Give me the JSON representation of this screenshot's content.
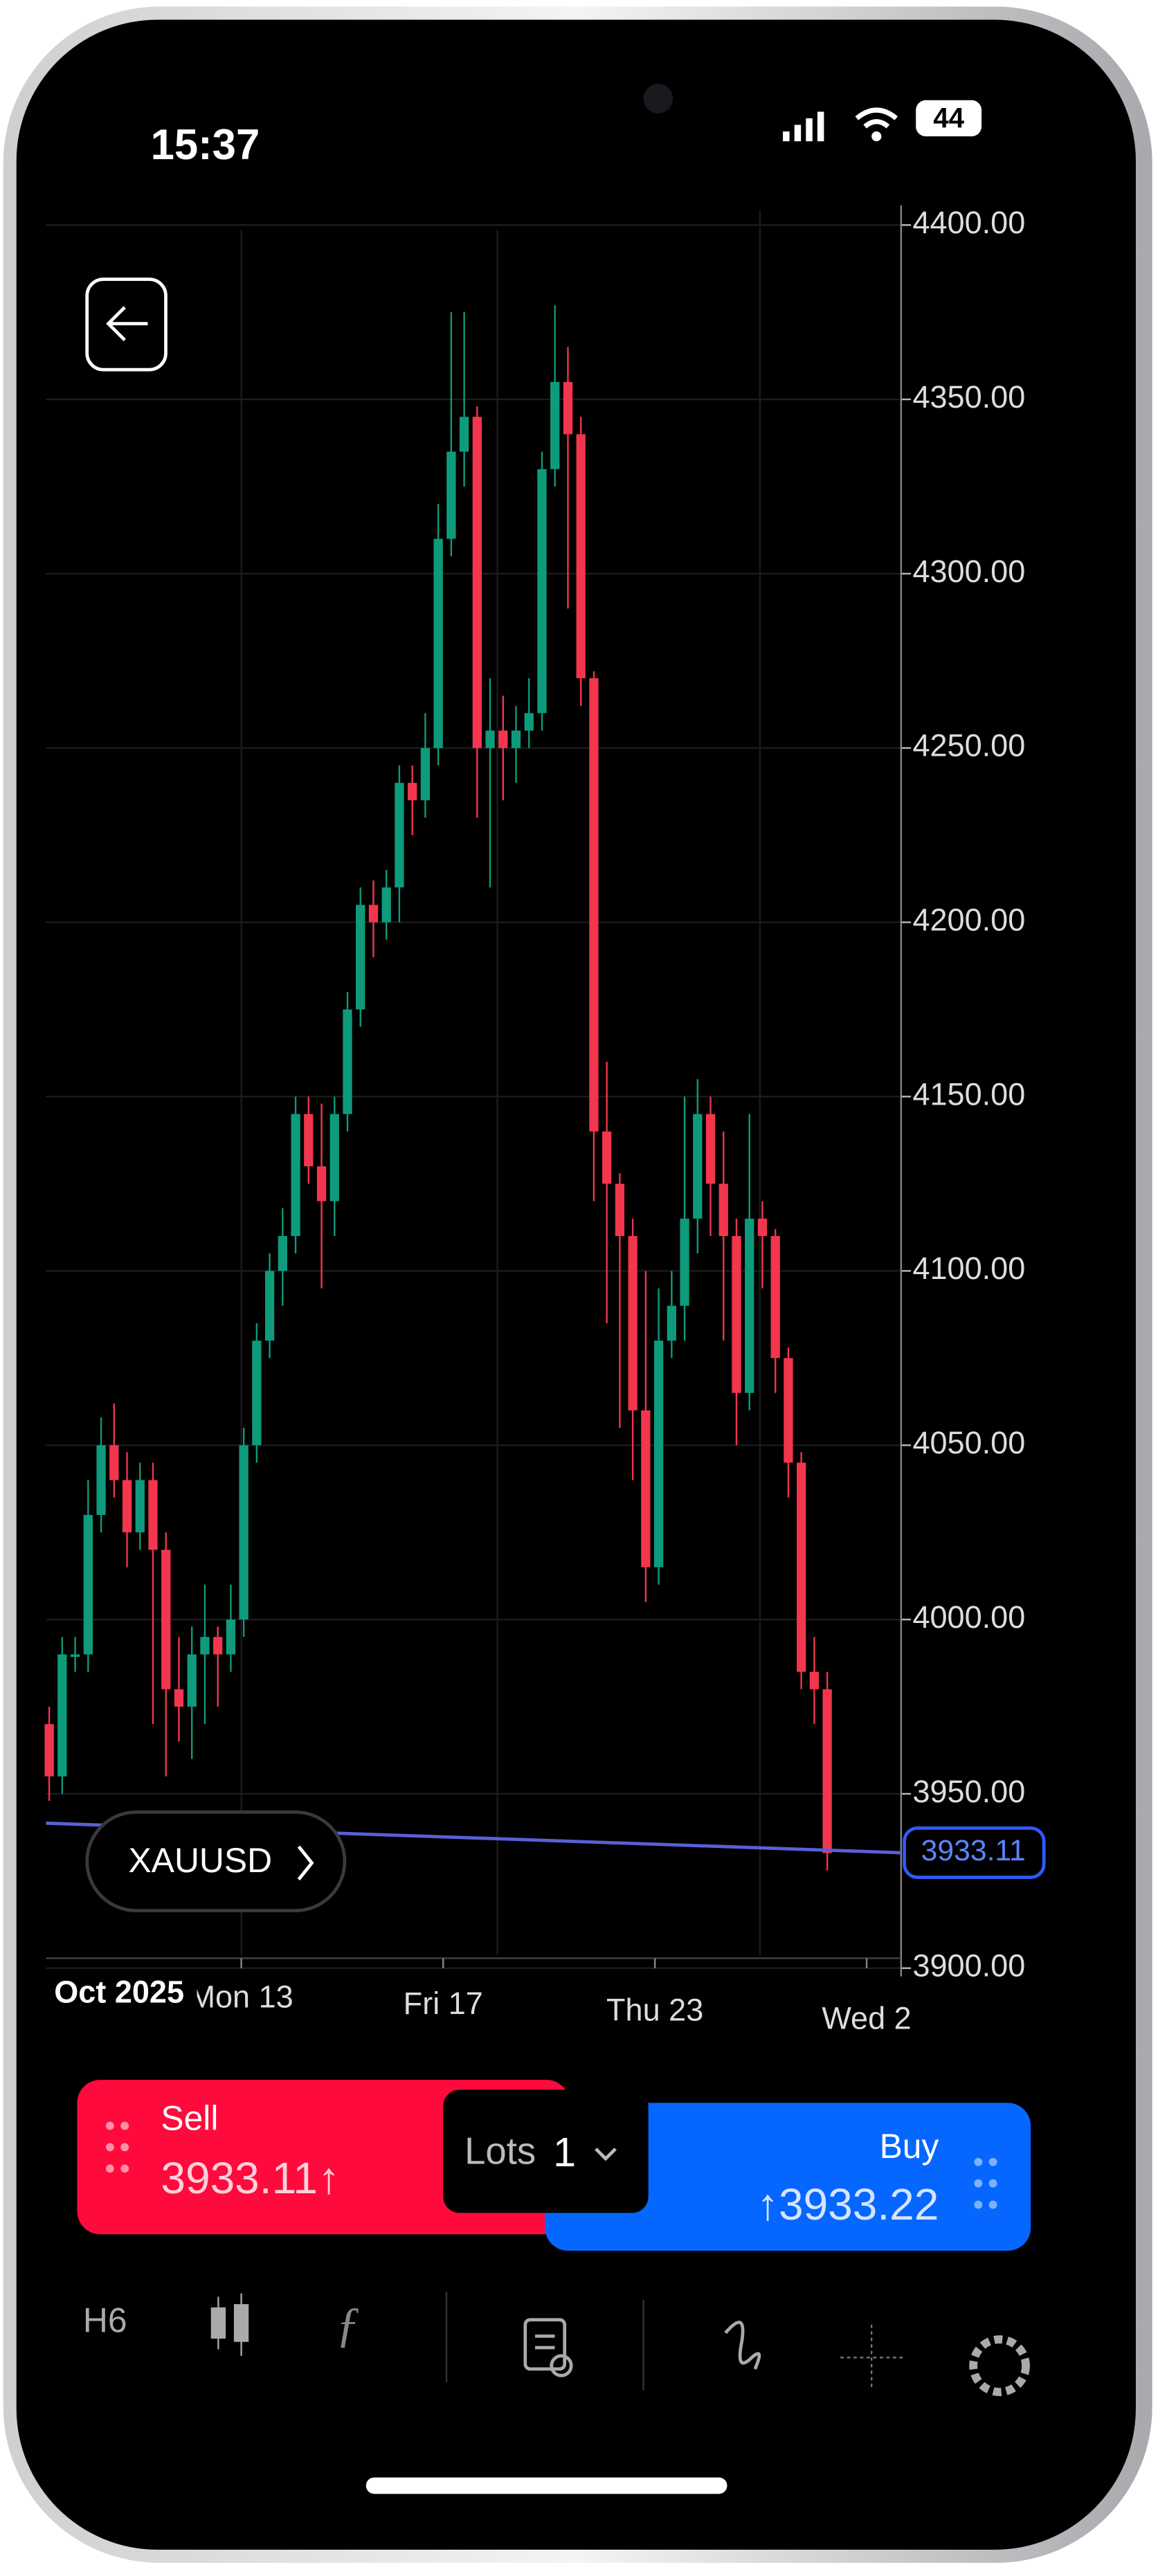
{
  "status_bar": {
    "time": "15:37",
    "battery": "44"
  },
  "symbol": "XAUUSD",
  "chart_data": {
    "type": "candlestick",
    "x_labels": [
      "Oct 2025",
      "Mon 13",
      "Fri 17",
      "Thu 23",
      "Wed 2"
    ],
    "open": [
      3970,
      3955,
      3990,
      3990,
      4030,
      4050,
      4040,
      4025,
      4040,
      4020,
      3980,
      3975,
      3990,
      3995,
      3990,
      4000,
      4050,
      4080,
      4100,
      4110,
      4145,
      4130,
      4120,
      4145,
      4175,
      4205,
      4200,
      4210,
      4240,
      4235,
      4250,
      4310,
      4335,
      4345,
      4250,
      4255,
      4250,
      4255,
      4260,
      4330,
      4355,
      4340,
      4270,
      4140,
      4125,
      4110,
      4060,
      4015,
      4080,
      4090,
      4115,
      4145,
      4125,
      4110,
      4065,
      4115,
      4110,
      4075,
      4045,
      3985,
      3980
    ],
    "high": [
      3975,
      3995,
      3995,
      4040,
      4058,
      4062,
      4048,
      4045,
      4045,
      4025,
      3995,
      3998,
      4010,
      3998,
      4010,
      4055,
      4085,
      4105,
      4118,
      4150,
      4150,
      4148,
      4150,
      4180,
      4210,
      4212,
      4215,
      4245,
      4245,
      4260,
      4320,
      4375,
      4375,
      4348,
      4270,
      4265,
      4262,
      4270,
      4335,
      4377,
      4365,
      4345,
      4272,
      4160,
      4128,
      4115,
      4100,
      4095,
      4100,
      4150,
      4155,
      4150,
      4140,
      4115,
      4145,
      4120,
      4112,
      4078,
      4048,
      3995,
      3985
    ],
    "low": [
      3948,
      3950,
      3985,
      3985,
      4025,
      4035,
      4015,
      4020,
      3970,
      3955,
      3965,
      3960,
      3970,
      3975,
      3985,
      3995,
      4045,
      4075,
      4090,
      4105,
      4125,
      4095,
      4110,
      4140,
      4170,
      4190,
      4195,
      4200,
      4225,
      4230,
      4245,
      4305,
      4325,
      4230,
      4210,
      4235,
      4240,
      4250,
      4255,
      4325,
      4290,
      4262,
      4120,
      4085,
      4055,
      4040,
      4005,
      4010,
      4075,
      4080,
      4105,
      4110,
      4080,
      4050,
      4060,
      4095,
      4065,
      4035,
      3980,
      3970,
      3928
    ],
    "close": [
      3955,
      3990,
      3990,
      4030,
      4050,
      4040,
      4025,
      4040,
      4020,
      3980,
      3975,
      3990,
      3995,
      3990,
      4000,
      4050,
      4080,
      4100,
      4110,
      4145,
      4130,
      4120,
      4145,
      4175,
      4205,
      4200,
      4210,
      4240,
      4235,
      4250,
      4310,
      4335,
      4345,
      4250,
      4255,
      4250,
      4255,
      4260,
      4330,
      4355,
      4340,
      4270,
      4140,
      4125,
      4110,
      4060,
      4015,
      4080,
      4090,
      4115,
      4145,
      4125,
      4110,
      4065,
      4115,
      4110,
      4075,
      4045,
      3985,
      3980,
      3933
    ],
    "up_color": "#0e9b7c",
    "down_color": "#f2364d",
    "ylim": [
      3900,
      4400
    ],
    "yticks": [
      {
        "value": 3900,
        "label": "3900.00"
      },
      {
        "value": 3950,
        "label": "3950.00"
      },
      {
        "value": 4000,
        "label": "4000.00"
      },
      {
        "value": 4050,
        "label": "4050.00"
      },
      {
        "value": 4100,
        "label": "4100.00"
      },
      {
        "value": 4150,
        "label": "4150.00"
      },
      {
        "value": 4200,
        "label": "4200.00"
      },
      {
        "value": 4250,
        "label": "4250.00"
      },
      {
        "value": 4300,
        "label": "4300.00"
      },
      {
        "value": 4350,
        "label": "4350.00"
      },
      {
        "value": 4400,
        "label": "4400.00"
      }
    ],
    "grid": true,
    "last_price": 3933.11,
    "price_line_color": "#5960d8"
  },
  "trade_panel": {
    "sell_label": "Sell",
    "sell_price": "3933.11↑",
    "lots_label": "Lots",
    "lots_value": "1",
    "buy_label": "Buy",
    "buy_price": "↑3933.22"
  },
  "toolbar": {
    "timeframe": "H6"
  }
}
